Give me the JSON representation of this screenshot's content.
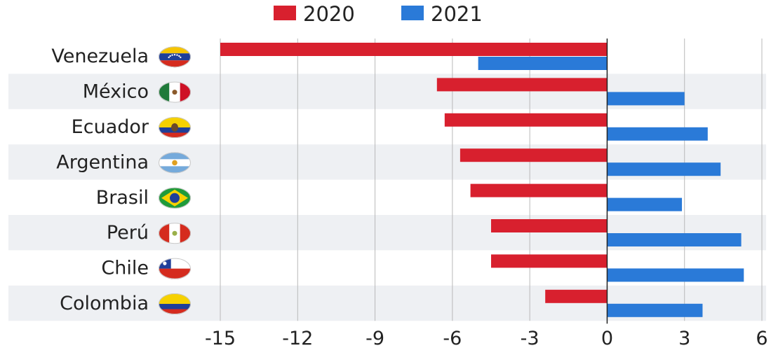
{
  "chart_data": {
    "type": "bar",
    "orientation": "horizontal",
    "categories": [
      "Venezuela",
      "México",
      "Ecuador",
      "Argentina",
      "Brasil",
      "Perú",
      "Chile",
      "Colombia"
    ],
    "flags": [
      "venezuela-flag-icon",
      "mexico-flag-icon",
      "ecuador-flag-icon",
      "argentina-flag-icon",
      "brazil-flag-icon",
      "peru-flag-icon",
      "chile-flag-icon",
      "colombia-flag-icon"
    ],
    "series": [
      {
        "name": "2020",
        "color": "#d8202e",
        "values": [
          -15,
          -6.6,
          -6.3,
          -5.7,
          -5.3,
          -4.5,
          -4.5,
          -2.4
        ]
      },
      {
        "name": "2021",
        "color": "#2a7ad8",
        "values": [
          -5,
          3,
          3.9,
          4.4,
          2.9,
          5.2,
          5.3,
          3.7
        ]
      }
    ],
    "xticks": [
      "-15",
      "-12",
      "-9",
      "-6",
      "-3",
      "0",
      "3",
      "6"
    ],
    "xlim": [
      -15,
      6
    ],
    "grid": true,
    "legend_position": "top-center"
  }
}
